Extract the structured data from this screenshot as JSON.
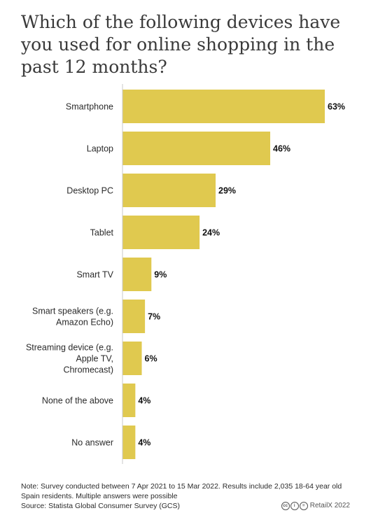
{
  "title": "Which of the following devices have you used for online shopping in the past 12 months?",
  "footer": {
    "note": "Note: Survey conducted between 7 Apr 2021 to 15 Mar 2022. Results include 2,035 18-64 year old Spain residents. Multiple answers were possible",
    "source": "Source: Statista Global Consumer Survey (GCS)",
    "brand": "RetailX 2022",
    "license_icons": [
      "cc-icon",
      "by-icon",
      "nd-icon"
    ],
    "license_glyphs": [
      "cc",
      "i",
      "="
    ]
  },
  "chart_data": {
    "type": "bar",
    "orientation": "horizontal",
    "categories": [
      "Smartphone",
      "Laptop",
      "Desktop PC",
      "Tablet",
      "Smart TV",
      "Smart speakers (e.g. Amazon Echo)",
      "Streaming device (e.g. Apple TV, Chromecast)",
      "None of the above",
      "No answer"
    ],
    "category_lines": [
      [
        "Smartphone"
      ],
      [
        "Laptop"
      ],
      [
        "Desktop PC"
      ],
      [
        "Tablet"
      ],
      [
        "Smart TV"
      ],
      [
        "Smart speakers (e.g.",
        "Amazon Echo)"
      ],
      [
        "Streaming device (e.g.",
        "Apple TV,",
        "Chromecast)"
      ],
      [
        "None of the above"
      ],
      [
        "No answer"
      ]
    ],
    "values": [
      63,
      46,
      29,
      24,
      9,
      7,
      6,
      4,
      4
    ],
    "value_labels": [
      "63%",
      "46%",
      "29%",
      "24%",
      "9%",
      "7%",
      "6%",
      "4%",
      "4%"
    ],
    "unit": "%",
    "xlim": [
      0,
      63
    ],
    "bar_color": "#e0c94f",
    "axis_color": "#c9c9c9",
    "grid": false,
    "legend": false
  }
}
